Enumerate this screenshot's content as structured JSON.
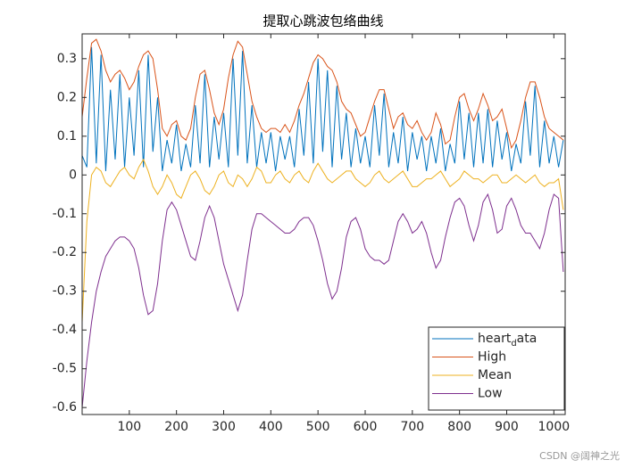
{
  "chart_data": {
    "type": "line",
    "title": "提取心跳波包络曲线",
    "x": [
      0,
      10,
      20,
      30,
      40,
      50,
      60,
      70,
      80,
      90,
      100,
      110,
      120,
      130,
      140,
      150,
      160,
      170,
      180,
      190,
      200,
      210,
      220,
      230,
      240,
      250,
      260,
      270,
      280,
      290,
      300,
      310,
      320,
      330,
      340,
      350,
      360,
      370,
      380,
      390,
      400,
      410,
      420,
      430,
      440,
      450,
      460,
      470,
      480,
      490,
      500,
      510,
      520,
      530,
      540,
      550,
      560,
      570,
      580,
      590,
      600,
      610,
      620,
      630,
      640,
      650,
      660,
      670,
      680,
      690,
      700,
      710,
      720,
      730,
      740,
      750,
      760,
      770,
      780,
      790,
      800,
      810,
      820,
      830,
      840,
      850,
      860,
      870,
      880,
      890,
      900,
      910,
      920,
      930,
      940,
      950,
      960,
      970,
      980,
      990,
      1000,
      1010,
      1020
    ],
    "series": [
      {
        "name": "heart_data",
        "color": "#0072BD",
        "values": [
          0.05,
          0.02,
          0.33,
          0.03,
          0.31,
          0.01,
          0.22,
          0.04,
          0.26,
          0.02,
          0.2,
          0.05,
          0.27,
          0.02,
          0.31,
          0.06,
          0.2,
          0.01,
          0.09,
          0.03,
          0.13,
          0.01,
          0.08,
          0.02,
          0.18,
          0.03,
          0.26,
          0.02,
          0.15,
          0.04,
          0.16,
          0.02,
          0.3,
          0.05,
          0.32,
          0.03,
          0.18,
          0.02,
          0.11,
          0.03,
          0.11,
          0.01,
          0.1,
          0.04,
          0.1,
          0.02,
          0.17,
          0.05,
          0.24,
          0.03,
          0.3,
          0.06,
          0.27,
          0.02,
          0.23,
          0.04,
          0.16,
          0.02,
          0.12,
          0.03,
          0.1,
          0.02,
          0.18,
          0.05,
          0.21,
          0.02,
          0.11,
          0.03,
          0.15,
          0.01,
          0.11,
          0.04,
          0.1,
          0.01,
          0.1,
          0.03,
          0.12,
          0.01,
          0.08,
          0.03,
          0.19,
          0.04,
          0.16,
          0.02,
          0.16,
          0.03,
          0.17,
          0.02,
          0.14,
          0.04,
          0.11,
          0.01,
          0.08,
          0.03,
          0.19,
          0.05,
          0.23,
          0.02,
          0.14,
          0.03,
          0.1,
          0.02,
          0.09
        ]
      },
      {
        "name": "High",
        "color": "#D95319",
        "values": [
          0.15,
          0.25,
          0.34,
          0.35,
          0.32,
          0.27,
          0.24,
          0.26,
          0.27,
          0.25,
          0.22,
          0.24,
          0.28,
          0.31,
          0.32,
          0.3,
          0.22,
          0.12,
          0.1,
          0.13,
          0.14,
          0.1,
          0.09,
          0.12,
          0.2,
          0.26,
          0.27,
          0.22,
          0.16,
          0.13,
          0.17,
          0.25,
          0.31,
          0.345,
          0.33,
          0.26,
          0.19,
          0.15,
          0.12,
          0.11,
          0.12,
          0.12,
          0.11,
          0.13,
          0.11,
          0.14,
          0.18,
          0.21,
          0.25,
          0.29,
          0.31,
          0.3,
          0.28,
          0.27,
          0.24,
          0.19,
          0.17,
          0.16,
          0.13,
          0.1,
          0.11,
          0.15,
          0.19,
          0.22,
          0.22,
          0.17,
          0.12,
          0.15,
          0.16,
          0.13,
          0.12,
          0.14,
          0.11,
          0.09,
          0.11,
          0.16,
          0.13,
          0.08,
          0.09,
          0.15,
          0.2,
          0.21,
          0.17,
          0.14,
          0.17,
          0.21,
          0.18,
          0.14,
          0.15,
          0.17,
          0.12,
          0.07,
          0.09,
          0.14,
          0.2,
          0.24,
          0.24,
          0.2,
          0.15,
          0.12,
          0.11,
          0.1,
          0.09
        ]
      },
      {
        "name": "Mean",
        "color": "#EDB120",
        "values": [
          -0.38,
          -0.12,
          0.0,
          0.02,
          0.01,
          -0.02,
          -0.03,
          -0.01,
          0.01,
          0.02,
          0.0,
          -0.01,
          0.02,
          0.04,
          0.01,
          -0.03,
          -0.05,
          -0.03,
          0.0,
          -0.02,
          -0.05,
          -0.06,
          -0.03,
          0.0,
          0.01,
          -0.01,
          -0.04,
          -0.05,
          -0.03,
          0.0,
          0.01,
          -0.02,
          -0.03,
          0.0,
          -0.01,
          -0.03,
          -0.01,
          0.02,
          0.01,
          -0.02,
          -0.02,
          0.0,
          0.01,
          -0.01,
          -0.02,
          0.0,
          0.01,
          -0.01,
          -0.02,
          0.01,
          0.03,
          0.01,
          -0.01,
          -0.02,
          -0.01,
          0.0,
          0.01,
          0.01,
          -0.01,
          -0.02,
          -0.03,
          -0.02,
          0.0,
          0.01,
          -0.01,
          -0.02,
          -0.01,
          0.0,
          0.01,
          -0.01,
          -0.03,
          -0.03,
          -0.02,
          -0.01,
          -0.01,
          0.0,
          0.01,
          -0.01,
          -0.03,
          -0.02,
          -0.01,
          0.01,
          0.0,
          -0.01,
          -0.01,
          -0.02,
          -0.01,
          0.0,
          0.0,
          -0.02,
          -0.02,
          -0.01,
          0.0,
          -0.01,
          -0.02,
          -0.01,
          0.0,
          -0.02,
          -0.03,
          -0.02,
          -0.02,
          -0.01,
          -0.09
        ]
      },
      {
        "name": "Low",
        "color": "#7E2F8E",
        "values": [
          -0.6,
          -0.48,
          -0.38,
          -0.3,
          -0.25,
          -0.21,
          -0.19,
          -0.17,
          -0.16,
          -0.16,
          -0.17,
          -0.19,
          -0.24,
          -0.31,
          -0.36,
          -0.35,
          -0.28,
          -0.17,
          -0.09,
          -0.07,
          -0.09,
          -0.13,
          -0.17,
          -0.21,
          -0.22,
          -0.17,
          -0.11,
          -0.08,
          -0.11,
          -0.17,
          -0.23,
          -0.27,
          -0.31,
          -0.35,
          -0.31,
          -0.22,
          -0.14,
          -0.1,
          -0.1,
          -0.11,
          -0.12,
          -0.13,
          -0.14,
          -0.15,
          -0.15,
          -0.14,
          -0.12,
          -0.11,
          -0.11,
          -0.13,
          -0.17,
          -0.22,
          -0.28,
          -0.32,
          -0.3,
          -0.24,
          -0.16,
          -0.12,
          -0.11,
          -0.14,
          -0.19,
          -0.21,
          -0.22,
          -0.22,
          -0.23,
          -0.22,
          -0.17,
          -0.12,
          -0.1,
          -0.12,
          -0.15,
          -0.14,
          -0.12,
          -0.15,
          -0.2,
          -0.24,
          -0.22,
          -0.16,
          -0.11,
          -0.07,
          -0.06,
          -0.08,
          -0.13,
          -0.17,
          -0.13,
          -0.07,
          -0.05,
          -0.09,
          -0.15,
          -0.14,
          -0.08,
          -0.06,
          -0.09,
          -0.13,
          -0.15,
          -0.15,
          -0.17,
          -0.19,
          -0.15,
          -0.09,
          -0.05,
          -0.06,
          -0.25
        ]
      }
    ],
    "xlim": [
      0,
      1024
    ],
    "ylim": [
      -0.618,
      0.364
    ],
    "xticks": [
      100,
      200,
      300,
      400,
      500,
      600,
      700,
      800,
      900,
      1000
    ],
    "yticks": [
      -0.6,
      -0.5,
      -0.4,
      -0.3,
      -0.2,
      -0.1,
      0,
      0.1,
      0.2,
      0.3
    ],
    "grid": false,
    "legend": "southeast",
    "watermark": "CSDN @阔神之光"
  }
}
